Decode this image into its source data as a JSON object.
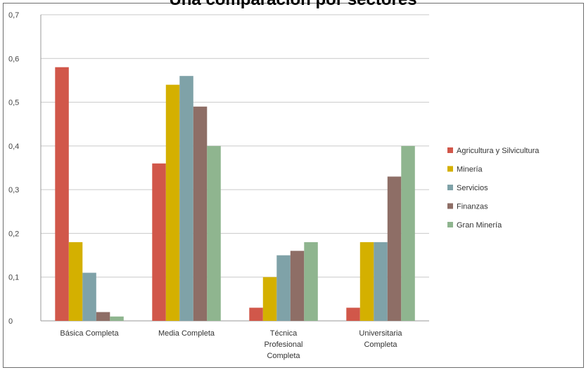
{
  "chart_data": {
    "type": "bar",
    "title": "Una comparación por sectores",
    "categories": [
      [
        "Básica Completa"
      ],
      [
        "Media Completa"
      ],
      [
        "Técnica",
        "Profesional",
        "Completa"
      ],
      [
        "Universitaria",
        "Completa"
      ]
    ],
    "series": [
      {
        "name": "Agricultura y Silvicultura",
        "color": "#d1574a",
        "values": [
          0.58,
          0.36,
          0.03,
          0.03
        ]
      },
      {
        "name": "Minería",
        "color": "#d4b000",
        "values": [
          0.18,
          0.54,
          0.1,
          0.18
        ]
      },
      {
        "name": "Servicios",
        "color": "#7fa2a8",
        "values": [
          0.11,
          0.56,
          0.15,
          0.18
        ]
      },
      {
        "name": "Finanzas",
        "color": "#8e6e66",
        "values": [
          0.02,
          0.49,
          0.16,
          0.33
        ]
      },
      {
        "name": "Gran Minería",
        "color": "#8fb58f",
        "values": [
          0.01,
          0.4,
          0.18,
          0.4
        ]
      }
    ],
    "ylim": [
      0,
      0.7
    ],
    "yticks": [
      "0",
      "0,1",
      "0,2",
      "0,3",
      "0,4",
      "0,5",
      "0,6",
      "0,7"
    ],
    "grid": true,
    "legend_position": "right"
  }
}
